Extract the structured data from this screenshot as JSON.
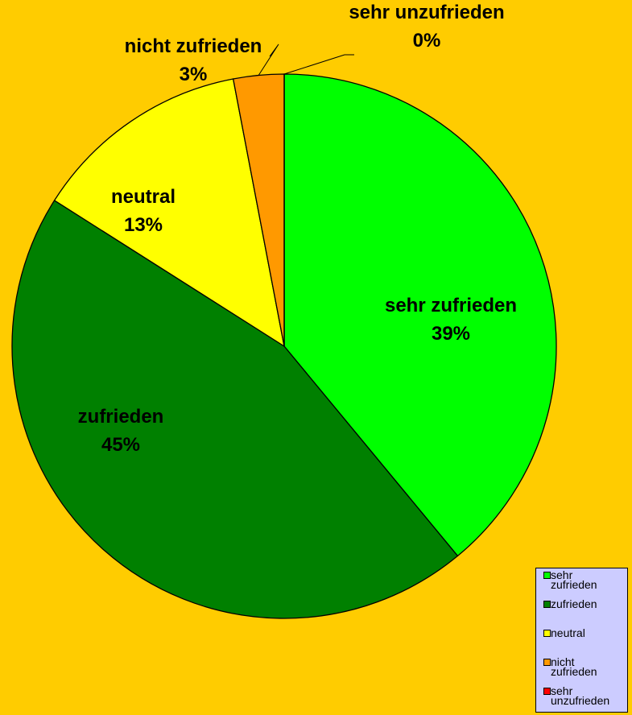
{
  "chart_data": {
    "type": "pie",
    "categories": [
      "sehr zufrieden",
      "zufrieden",
      "neutral",
      "nicht zufrieden",
      "sehr unzufrieden"
    ],
    "values": [
      39,
      45,
      13,
      3,
      0
    ],
    "value_labels": [
      "39%",
      "45%",
      "13%",
      "3%",
      "0%"
    ],
    "colors": [
      "#00ff00",
      "#008000",
      "#ffff00",
      "#ff9900",
      "#ff0000"
    ],
    "legend": "bottom-right"
  }
}
